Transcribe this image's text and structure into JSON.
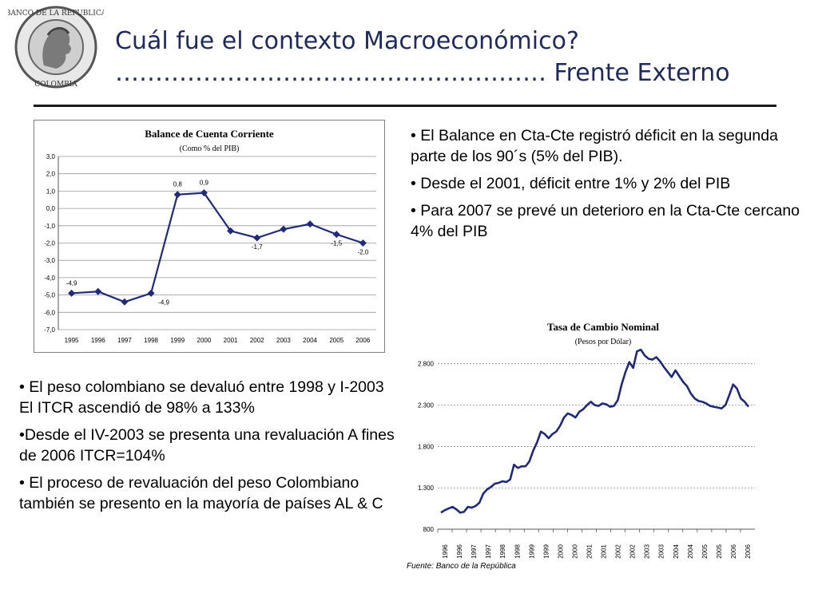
{
  "slide": {
    "title_line1": "Cuál fue el contexto Macroeconómico?",
    "title_line2": "……………………………………………… Frente Externo",
    "logo_text": "BANCO DE LA REPUBLICA · COLOMBIA",
    "bullets_right": [
      "• El Balance en Cta-Cte registró déficit en la segunda parte de los 90´s (5% del PIB).",
      "• Desde el 2001, déficit entre 1% y 2% del PIB",
      "• Para 2007 se prevé un deterioro en la Cta-Cte cercano 4% del PIB"
    ],
    "bullets_left": [
      "•  El peso colombiano se devaluó entre 1998 y I-2003  El ITCR ascendió de 98% a 133%",
      "•Desde el IV-2003 se presenta una revaluación A fines de 2006 ITCR=104%",
      "• El proceso de revaluación del peso Colombiano también se presento en la mayoría de países AL & C"
    ],
    "source": "Fuente: Banco de la República",
    "colors": {
      "title": "#1f2a5c",
      "series": "#1f2a78"
    }
  },
  "chart_data": [
    {
      "type": "line",
      "title": "Balance de Cuenta Corriente",
      "subtitle": "(Como % del PIB)",
      "categories": [
        "1995",
        "1996",
        "1997",
        "1998",
        "1999",
        "2000",
        "2001",
        "2002",
        "2003",
        "2004",
        "2005",
        "2006"
      ],
      "values": [
        -4.9,
        -4.8,
        -5.4,
        -4.9,
        0.8,
        0.9,
        -1.3,
        -1.7,
        -1.2,
        -0.9,
        -1.5,
        -2.0
      ],
      "data_labels": [
        {
          "index": 0,
          "text": "-4,9"
        },
        {
          "index": 3,
          "text": "-4,9"
        },
        {
          "index": 4,
          "text": "0,8"
        },
        {
          "index": 5,
          "text": "0,9"
        },
        {
          "index": 7,
          "text": "-1,7"
        },
        {
          "index": 10,
          "text": "-1,5"
        },
        {
          "index": 11,
          "text": "-2,0"
        }
      ],
      "yticks": [
        "3,0",
        "2,0",
        "1,0",
        "0,0",
        "-1,0",
        "-2,0",
        "-3,0",
        "-4,0",
        "-5,0",
        "-6,0",
        "-7,0"
      ],
      "ylim": [
        -7,
        3
      ],
      "markers": "diamond",
      "grid": true
    },
    {
      "type": "line",
      "title": "Tasa de Cambio Nominal",
      "subtitle": "(Pesos por Dólar)",
      "x_labels": [
        "1996",
        "1996",
        "1997",
        "1997",
        "1998",
        "1998",
        "1999",
        "1999",
        "2000",
        "2000",
        "2001",
        "2001",
        "2002",
        "2002",
        "2003",
        "2003",
        "2004",
        "2004",
        "2005",
        "2005",
        "2006",
        "2006"
      ],
      "yticks": [
        "2.800",
        "2.300",
        "1.800",
        "1.300",
        "800"
      ],
      "ylim": [
        800,
        3000
      ],
      "values": [
        1000,
        1030,
        1050,
        1070,
        1040,
        1000,
        1010,
        1070,
        1060,
        1080,
        1120,
        1230,
        1280,
        1310,
        1350,
        1360,
        1380,
        1370,
        1400,
        1580,
        1540,
        1560,
        1560,
        1620,
        1750,
        1850,
        1980,
        1950,
        1900,
        1950,
        1980,
        2050,
        2150,
        2200,
        2180,
        2150,
        2220,
        2250,
        2300,
        2340,
        2300,
        2290,
        2320,
        2310,
        2280,
        2290,
        2360,
        2550,
        2700,
        2820,
        2750,
        2950,
        2970,
        2900,
        2860,
        2850,
        2880,
        2830,
        2760,
        2700,
        2640,
        2720,
        2650,
        2580,
        2530,
        2440,
        2380,
        2350,
        2340,
        2320,
        2290,
        2280,
        2270,
        2260,
        2300,
        2420,
        2550,
        2500,
        2380,
        2340,
        2280
      ],
      "grid": true
    }
  ]
}
